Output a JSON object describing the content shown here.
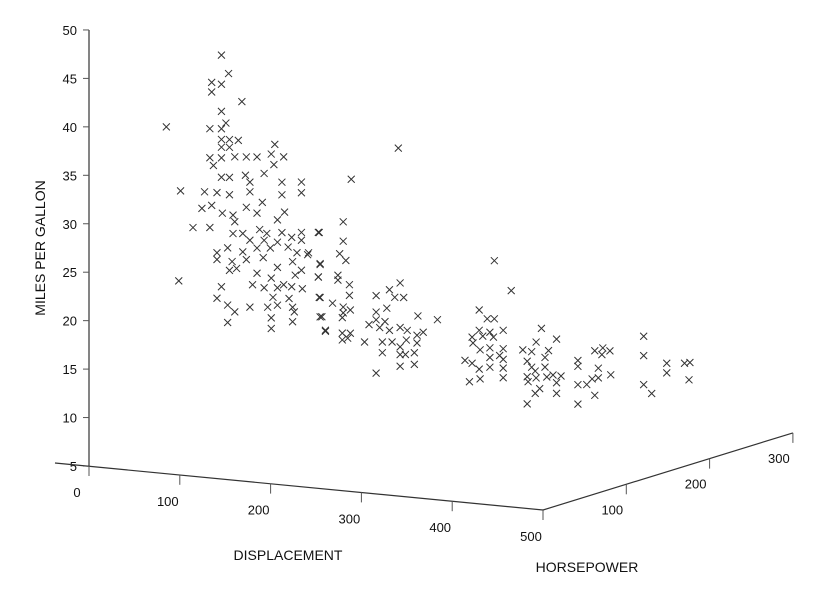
{
  "chart_data": {
    "type": "scatter",
    "projection": "3d",
    "xlabel": "DISPLACEMENT",
    "ylabel": "HORSEPOWER",
    "zlabel": "MILES PER GALLON",
    "xlim": [
      0,
      500
    ],
    "ylim": [
      0,
      300
    ],
    "zlim": [
      5,
      50
    ],
    "xticks": [
      "0",
      "100",
      "200",
      "300",
      "400",
      "500"
    ],
    "yticks": [
      "100",
      "200",
      "300"
    ],
    "zticks": [
      "5",
      "10",
      "15",
      "20",
      "25",
      "30",
      "35",
      "40",
      "45",
      "50"
    ],
    "grid": false,
    "marker": "x",
    "marker_color": "#333333",
    "points": [
      [
        111,
        38,
        47.4
      ],
      [
        117,
        40,
        45.5
      ],
      [
        103,
        35,
        44.6
      ],
      [
        111,
        38,
        44.4
      ],
      [
        103,
        35,
        43.6
      ],
      [
        128,
        44,
        42.6
      ],
      [
        111,
        38,
        41.6
      ],
      [
        65,
        22,
        40.0
      ],
      [
        101,
        35,
        39.8
      ],
      [
        111,
        38,
        39.8
      ],
      [
        115,
        39,
        40.4
      ],
      [
        111,
        38,
        38.7
      ],
      [
        118,
        40,
        38.7
      ],
      [
        125,
        43,
        38.6
      ],
      [
        111,
        38,
        37.9
      ],
      [
        118,
        40,
        37.9
      ],
      [
        156,
        53,
        38.2
      ],
      [
        101,
        35,
        36.8
      ],
      [
        111,
        38,
        36.8
      ],
      [
        122,
        42,
        36.9
      ],
      [
        132,
        45,
        36.9
      ],
      [
        141,
        48,
        36.9
      ],
      [
        153,
        52,
        37.2
      ],
      [
        163,
        56,
        36.9
      ],
      [
        104,
        36,
        36.0
      ],
      [
        155,
        53,
        36.1
      ],
      [
        147,
        50,
        35.2
      ],
      [
        111,
        38,
        34.8
      ],
      [
        118,
        40,
        34.8
      ],
      [
        131,
        45,
        35.0
      ],
      [
        135,
        46,
        34.3
      ],
      [
        162,
        55,
        34.3
      ],
      [
        178,
        61,
        34.3
      ],
      [
        77,
        26,
        33.4
      ],
      [
        97,
        33,
        33.3
      ],
      [
        107,
        37,
        33.2
      ],
      [
        118,
        40,
        33.0
      ],
      [
        135,
        46,
        33.3
      ],
      [
        145,
        50,
        32.2
      ],
      [
        162,
        55,
        33.0
      ],
      [
        178,
        61,
        33.2
      ],
      [
        95,
        32,
        31.6
      ],
      [
        103,
        35,
        31.9
      ],
      [
        112,
        38,
        31.1
      ],
      [
        121,
        41,
        30.9
      ],
      [
        132,
        45,
        31.7
      ],
      [
        141,
        48,
        31.1
      ],
      [
        164,
        56,
        31.2
      ],
      [
        122,
        42,
        30.2
      ],
      [
        158,
        54,
        30.4
      ],
      [
        87,
        30,
        29.6
      ],
      [
        101,
        35,
        29.6
      ],
      [
        121,
        41,
        29.0
      ],
      [
        129,
        44,
        29.0
      ],
      [
        143,
        49,
        29.4
      ],
      [
        149,
        51,
        29.0
      ],
      [
        162,
        55,
        29.1
      ],
      [
        178,
        61,
        29.1
      ],
      [
        192,
        66,
        29.1
      ],
      [
        135,
        46,
        28.3
      ],
      [
        147,
        50,
        28.3
      ],
      [
        158,
        54,
        28.1
      ],
      [
        170,
        58,
        28.6
      ],
      [
        178,
        61,
        28.3
      ],
      [
        116,
        40,
        27.5
      ],
      [
        129,
        44,
        27.1
      ],
      [
        141,
        48,
        27.5
      ],
      [
        152,
        52,
        27.5
      ],
      [
        167,
        57,
        27.6
      ],
      [
        174,
        60,
        27.0
      ],
      [
        184,
        63,
        27.0
      ],
      [
        107,
        37,
        27.0
      ],
      [
        107,
        37,
        26.3
      ],
      [
        120,
        41,
        26.1
      ],
      [
        132,
        45,
        26.3
      ],
      [
        146,
        50,
        26.5
      ],
      [
        158,
        54,
        25.5
      ],
      [
        171,
        58,
        26.1
      ],
      [
        178,
        61,
        25.2
      ],
      [
        194,
        66,
        25.9
      ],
      [
        118,
        40,
        25.2
      ],
      [
        124,
        42,
        25.4
      ],
      [
        141,
        48,
        24.9
      ],
      [
        153,
        52,
        24.4
      ],
      [
        163,
        56,
        23.7
      ],
      [
        173,
        59,
        24.7
      ],
      [
        192,
        66,
        24.5
      ],
      [
        75,
        26,
        24.1
      ],
      [
        111,
        38,
        23.5
      ],
      [
        137,
        47,
        23.7
      ],
      [
        147,
        50,
        23.4
      ],
      [
        158,
        54,
        23.4
      ],
      [
        170,
        58,
        23.5
      ],
      [
        179,
        61,
        23.3
      ],
      [
        107,
        37,
        22.3
      ],
      [
        154,
        53,
        22.4
      ],
      [
        168,
        57,
        22.3
      ],
      [
        194,
        66,
        22.4
      ],
      [
        116,
        40,
        21.6
      ],
      [
        122,
        42,
        20.9
      ],
      [
        135,
        46,
        21.4
      ],
      [
        150,
        51,
        21.4
      ],
      [
        158,
        54,
        21.6
      ],
      [
        171,
        58,
        21.4
      ],
      [
        172,
        59,
        20.9
      ],
      [
        116,
        40,
        19.8
      ],
      [
        153,
        52,
        20.3
      ],
      [
        153,
        52,
        19.2
      ],
      [
        171,
        58,
        19.9
      ],
      [
        195,
        67,
        20.4
      ],
      [
        198,
        68,
        19.0
      ],
      [
        259,
        89,
        37.8
      ],
      [
        220,
        75,
        34.6
      ],
      [
        213,
        73,
        30.2
      ],
      [
        193,
        66,
        29.1
      ],
      [
        213,
        73,
        28.2
      ],
      [
        210,
        72,
        26.9
      ],
      [
        215,
        74,
        26.2
      ],
      [
        194,
        66,
        25.8
      ],
      [
        183,
        63,
        26.8
      ],
      [
        192,
        66,
        24.5
      ],
      [
        209,
        71,
        24.7
      ],
      [
        209,
        71,
        24.2
      ],
      [
        218,
        75,
        23.7
      ],
      [
        218,
        75,
        22.6
      ],
      [
        193,
        66,
        22.4
      ],
      [
        204,
        70,
        21.8
      ],
      [
        213,
        73,
        21.4
      ],
      [
        213,
        73,
        20.8
      ],
      [
        219,
        75,
        21.1
      ],
      [
        212,
        73,
        20.3
      ],
      [
        194,
        66,
        20.4
      ],
      [
        198,
        68,
        18.9
      ],
      [
        212,
        73,
        18.7
      ],
      [
        219,
        75,
        18.7
      ],
      [
        212,
        73,
        18.0
      ],
      [
        217,
        74,
        18.2
      ],
      [
        241,
        82,
        22.6
      ],
      [
        252,
        86,
        23.2
      ],
      [
        261,
        89,
        23.9
      ],
      [
        256,
        88,
        22.4
      ],
      [
        264,
        90,
        22.4
      ],
      [
        250,
        85,
        21.3
      ],
      [
        241,
        82,
        20.9
      ],
      [
        241,
        82,
        20.1
      ],
      [
        248,
        85,
        19.9
      ],
      [
        235,
        80,
        19.6
      ],
      [
        244,
        83,
        19.3
      ],
      [
        252,
        86,
        19.0
      ],
      [
        261,
        89,
        19.3
      ],
      [
        267,
        91,
        19.0
      ],
      [
        275,
        94,
        18.5
      ],
      [
        280,
        96,
        18.8
      ],
      [
        276,
        94,
        20.5
      ],
      [
        292,
        100,
        20.1
      ],
      [
        231,
        79,
        17.8
      ],
      [
        246,
        84,
        17.8
      ],
      [
        254,
        87,
        17.8
      ],
      [
        261,
        89,
        17.3
      ],
      [
        266,
        91,
        18.0
      ],
      [
        275,
        94,
        17.7
      ],
      [
        246,
        84,
        16.7
      ],
      [
        261,
        89,
        16.5
      ],
      [
        265,
        91,
        16.5
      ],
      [
        273,
        93,
        16.7
      ],
      [
        261,
        89,
        15.3
      ],
      [
        273,
        93,
        15.5
      ],
      [
        241,
        82,
        14.6
      ],
      [
        340,
        116,
        26.2
      ],
      [
        354,
        121,
        23.1
      ],
      [
        327,
        112,
        21.1
      ],
      [
        334,
        114,
        20.2
      ],
      [
        340,
        116,
        20.2
      ],
      [
        347,
        119,
        19.0
      ],
      [
        327,
        112,
        19.0
      ],
      [
        336,
        115,
        18.8
      ],
      [
        321,
        110,
        18.3
      ],
      [
        330,
        113,
        18.4
      ],
      [
        339,
        116,
        18.3
      ],
      [
        322,
        110,
        17.7
      ],
      [
        328,
        112,
        17.0
      ],
      [
        336,
        115,
        17.2
      ],
      [
        347,
        119,
        17.1
      ],
      [
        344,
        118,
        16.4
      ],
      [
        336,
        115,
        16.2
      ],
      [
        347,
        119,
        16.0
      ],
      [
        315,
        108,
        15.9
      ],
      [
        321,
        110,
        15.6
      ],
      [
        336,
        115,
        15.2
      ],
      [
        327,
        112,
        15.0
      ],
      [
        347,
        119,
        15.1
      ],
      [
        319,
        109,
        13.7
      ],
      [
        328,
        112,
        14.0
      ],
      [
        347,
        119,
        14.1
      ],
      [
        379,
        130,
        19.2
      ],
      [
        375,
        128,
        17.8
      ],
      [
        392,
        134,
        18.1
      ],
      [
        364,
        124,
        17.0
      ],
      [
        371,
        127,
        16.8
      ],
      [
        385,
        132,
        16.9
      ],
      [
        382,
        131,
        16.2
      ],
      [
        367,
        126,
        15.8
      ],
      [
        371,
        127,
        15.2
      ],
      [
        382,
        131,
        15.2
      ],
      [
        374,
        128,
        14.8
      ],
      [
        367,
        126,
        14.2
      ],
      [
        375,
        128,
        14.1
      ],
      [
        384,
        131,
        14.2
      ],
      [
        389,
        133,
        14.4
      ],
      [
        396,
        135,
        14.3
      ],
      [
        392,
        134,
        13.6
      ],
      [
        368,
        126,
        13.7
      ],
      [
        378,
        129,
        13.0
      ],
      [
        374,
        128,
        12.5
      ],
      [
        392,
        134,
        12.5
      ],
      [
        367,
        126,
        11.4
      ],
      [
        410,
        140,
        15.9
      ],
      [
        410,
        140,
        15.3
      ],
      [
        424,
        145,
        16.9
      ],
      [
        431,
        147,
        17.2
      ],
      [
        437,
        149,
        16.9
      ],
      [
        430,
        147,
        16.5
      ],
      [
        427,
        146,
        15.1
      ],
      [
        427,
        146,
        14.1
      ],
      [
        437,
        150,
        14.4
      ],
      [
        410,
        140,
        13.4
      ],
      [
        417,
        143,
        13.4
      ],
      [
        422,
        144,
        14.0
      ],
      [
        424,
        145,
        12.3
      ],
      [
        410,
        140,
        11.4
      ],
      [
        465,
        159,
        18.4
      ],
      [
        465,
        159,
        16.4
      ],
      [
        465,
        159,
        13.4
      ],
      [
        472,
        161,
        12.5
      ],
      [
        484,
        166,
        15.6
      ],
      [
        484,
        166,
        14.6
      ],
      [
        499,
        171,
        15.6
      ],
      [
        504,
        172,
        15.7
      ],
      [
        503,
        172,
        13.9
      ]
    ]
  }
}
